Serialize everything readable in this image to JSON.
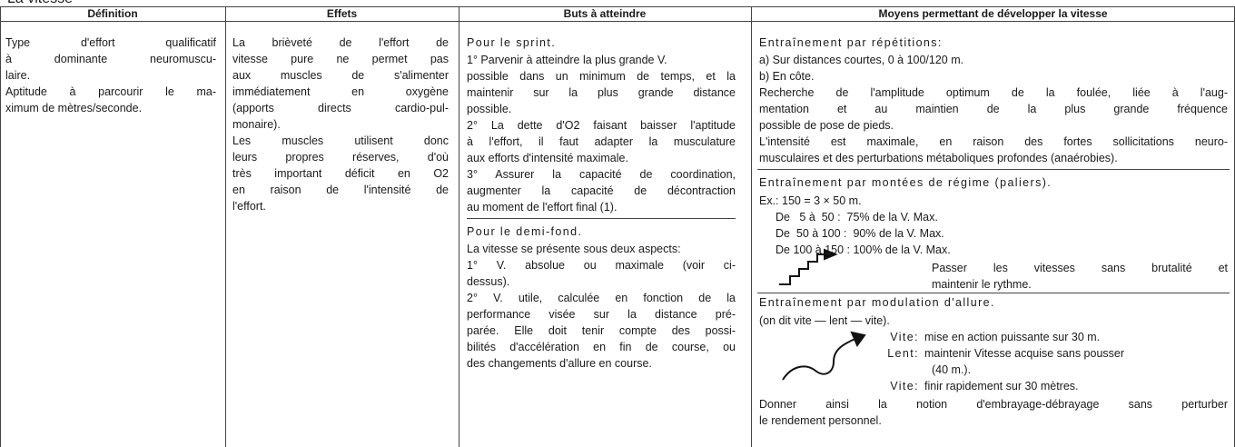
{
  "heading": "La vitesse",
  "table": {
    "headers": [
      "Définition",
      "Effets",
      "Buts à atteindre",
      "Moyens permettant de développer la vitesse"
    ],
    "definition": [
      "Type d'effort qualificatif",
      "à dominante neuromuscu-",
      "laire.",
      "Aptitude à parcourir le ma-",
      "ximum de mètres/seconde."
    ],
    "effets": [
      "La brièveté de l'effort de",
      "vitesse pure ne permet pas",
      "aux muscles de s'alimenter",
      "immédiatement en oxygène",
      "(apports directs cardio-pul-",
      "monaire).",
      "Les muscles utilisent donc",
      "leurs propres réserves, d'où",
      "très important déficit en O2",
      "en raison de l'intensité de",
      "l'effort."
    ],
    "buts": [
      {
        "heading": "Pour le sprint.",
        "lines": [
          "1° Parvenir à atteindre la plus grande V.",
          "possible dans un minimum de temps, et la",
          "maintenir sur la plus grande distance",
          "possible.",
          "2° La dette d'O2 faisant baisser l'aptitude",
          "à l'effort, il faut adapter la musculature",
          "aux efforts d'intensité maximale.",
          "3° Assurer la capacité de coordination,",
          "augmenter la capacité de décontraction",
          "au moment de l'effort final (1)."
        ]
      },
      {
        "heading": "Pour le demi-fond.",
        "lines": [
          "La vitesse se présente sous deux aspects:",
          "1° V. absolue ou maximale (voir ci-",
          "dessus).",
          "2° V. utile, calculée en fonction de la",
          "performance visée sur la distance pré-",
          "parée. Elle doit tenir compte des possi-",
          "bilités d'accélération en fin de course, ou",
          "des changements d'allure en course."
        ]
      }
    ],
    "moyens": {
      "repetitions": {
        "heading": "Entraînement par répétitions:",
        "lines": [
          "a) Sur distances courtes, 0 à 100/120 m.",
          "b) En côte.",
          "Recherche de l'amplitude optimum de la foulée, liée à l'aug-",
          "mentation et au maintien de la plus grande fréquence",
          "possible de pose de pieds.",
          "L'intensité est maximale, en raison des fortes sollicitations neuro-",
          "musculaires et des perturbations métaboliques profondes (anaérobies)."
        ]
      },
      "paliers": {
        "heading": "Entraînement par montées de régime (paliers).",
        "lines": [
          "Ex.: 150 = 3 × 50 m.",
          "De   5 à  50 :  75% de la V. Max.",
          "De  50 à 100 :  90% de la V. Max.",
          "De 100 à 150 : 100% de la V. Max."
        ],
        "note": [
          "Passer les vitesses sans brutalité et",
          "maintenir le rythme."
        ]
      },
      "modulation": {
        "heading": "Entraînement par modulation d'allure.",
        "intro": "(on dit vite — lent — vite).",
        "rows": [
          {
            "label": "Vite:",
            "text": [
              "mise en action puissante sur 30 m."
            ]
          },
          {
            "label": "Lent:",
            "text": [
              "maintenir Vitesse acquise sans pousser",
              "(40 m.)."
            ]
          },
          {
            "label": "Vite:",
            "text": [
              "finir rapidement sur 30 mètres."
            ]
          }
        ],
        "conclusion": [
          "Donner ainsi la notion d'embrayage-débrayage sans perturber",
          "le rendement personnel."
        ]
      }
    }
  }
}
